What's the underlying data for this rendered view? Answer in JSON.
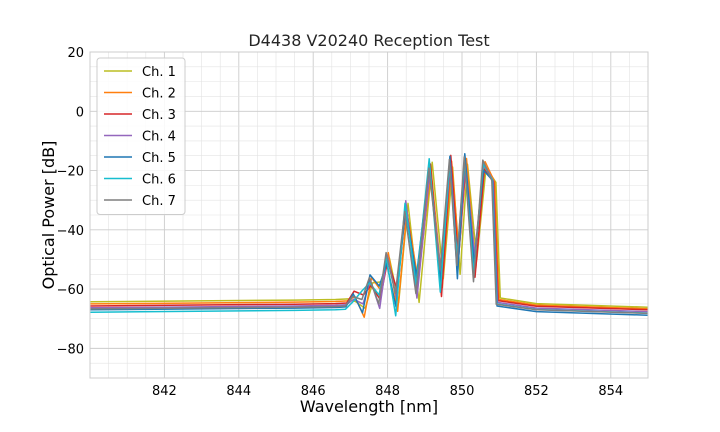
{
  "chart_data": {
    "type": "line",
    "title": "D4438 V20240 Reception Test",
    "xlabel": "Wavelength [nm]",
    "ylabel": "Optical Power [dB]",
    "xlim": [
      840.0,
      855.0
    ],
    "ylim": [
      -90,
      20
    ],
    "xticks": [
      842,
      844,
      846,
      848,
      850,
      852,
      854
    ],
    "yticks": [
      20,
      0,
      -20,
      -40,
      -60,
      -80
    ],
    "grid": true,
    "legend_position": "top-left",
    "series": [
      {
        "name": "Ch. 1",
        "color": "#bcbd22",
        "floor": -64.3,
        "left_ripple": 1.0,
        "shift": 0.12,
        "peak_offset": 0.0,
        "tail": -65.5
      },
      {
        "name": "Ch. 2",
        "color": "#ff7f0e",
        "floor": -65.0,
        "left_ripple": 1.0,
        "shift": 0.05,
        "peak_offset": 0.3,
        "tail": -66.0
      },
      {
        "name": "Ch. 3",
        "color": "#d62728",
        "floor": -65.7,
        "left_ripple": 1.0,
        "shift": 0.0,
        "peak_offset": 0.5,
        "tail": -66.4
      },
      {
        "name": "Ch. 4",
        "color": "#9467bd",
        "floor": -66.3,
        "left_ripple": 1.0,
        "shift": -0.03,
        "peak_offset": 1.0,
        "tail": -67.0
      },
      {
        "name": "Ch. 5",
        "color": "#1f77b4",
        "floor": -67.0,
        "left_ripple": 1.0,
        "shift": -0.06,
        "peak_offset": 1.5,
        "tail": -68.2
      },
      {
        "name": "Ch. 6",
        "color": "#17becf",
        "floor": -67.8,
        "left_ripple": 1.0,
        "shift": -0.08,
        "peak_offset": 2.0,
        "tail": -67.5
      },
      {
        "name": "Ch. 7",
        "color": "#7f7f7f",
        "floor": -66.7,
        "left_ripple": 1.0,
        "shift": -0.1,
        "peak_offset": 1.2,
        "tail": -67.6
      }
    ],
    "spectrum_shape": {
      "peaks": [
        {
          "x": 847.1,
          "y": -62.5
        },
        {
          "x": 847.55,
          "y": -57.0
        },
        {
          "x": 848.0,
          "y": -49.5
        },
        {
          "x": 848.5,
          "y": -32.0
        },
        {
          "x": 849.15,
          "y": -19.0
        },
        {
          "x": 849.7,
          "y": -17.0
        },
        {
          "x": 850.1,
          "y": -17.0
        },
        {
          "x": 850.6,
          "y": -19.0
        }
      ],
      "dips": [
        {
          "x": 847.35,
          "y": -65.0
        },
        {
          "x": 847.8,
          "y": -62.0
        },
        {
          "x": 848.25,
          "y": -64.5
        },
        {
          "x": 848.8,
          "y": -60.0
        },
        {
          "x": 849.45,
          "y": -58.0
        },
        {
          "x": 849.9,
          "y": -52.0
        },
        {
          "x": 850.35,
          "y": -53.0
        }
      ],
      "band_start": 846.9,
      "band_end": 850.85
    }
  }
}
